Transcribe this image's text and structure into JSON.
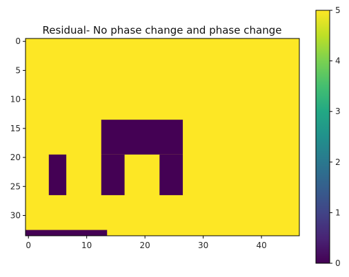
{
  "chart_data": {
    "type": "heatmap",
    "title": "Residual- No phase change and phase change",
    "xlabel": "",
    "ylabel": "",
    "grid": false,
    "shape": {
      "rows": 34,
      "cols": 47
    },
    "xlim": [
      -0.5,
      46.5
    ],
    "ylim": [
      33.5,
      -0.5
    ],
    "y_axis_inverted": true,
    "x_ticks": [
      0,
      10,
      20,
      30,
      40
    ],
    "x_tick_labels": [
      "0",
      "10",
      "20",
      "30",
      "40"
    ],
    "y_ticks": [
      0,
      5,
      10,
      15,
      20,
      25,
      30
    ],
    "y_tick_labels": [
      "0",
      "5",
      "10",
      "15",
      "20",
      "25",
      "30"
    ],
    "background_value": 5,
    "zero_regions": [
      {
        "rows": [
          14,
          19
        ],
        "cols": [
          13,
          26
        ]
      },
      {
        "rows": [
          20,
          26
        ],
        "cols": [
          13,
          16
        ]
      },
      {
        "rows": [
          20,
          26
        ],
        "cols": [
          23,
          26
        ]
      },
      {
        "rows": [
          20,
          26
        ],
        "cols": [
          4,
          6
        ]
      },
      {
        "rows": [
          33,
          33
        ],
        "cols": [
          0,
          13
        ]
      }
    ],
    "colorbar": {
      "colormap": "viridis",
      "vmin": 0,
      "vmax": 5,
      "ticks": [
        0,
        1,
        2,
        3,
        4,
        5
      ],
      "tick_labels": [
        "0",
        "1",
        "2",
        "3",
        "4",
        "5"
      ]
    },
    "colors": {
      "low": "#440154",
      "high": "#fde725"
    }
  }
}
